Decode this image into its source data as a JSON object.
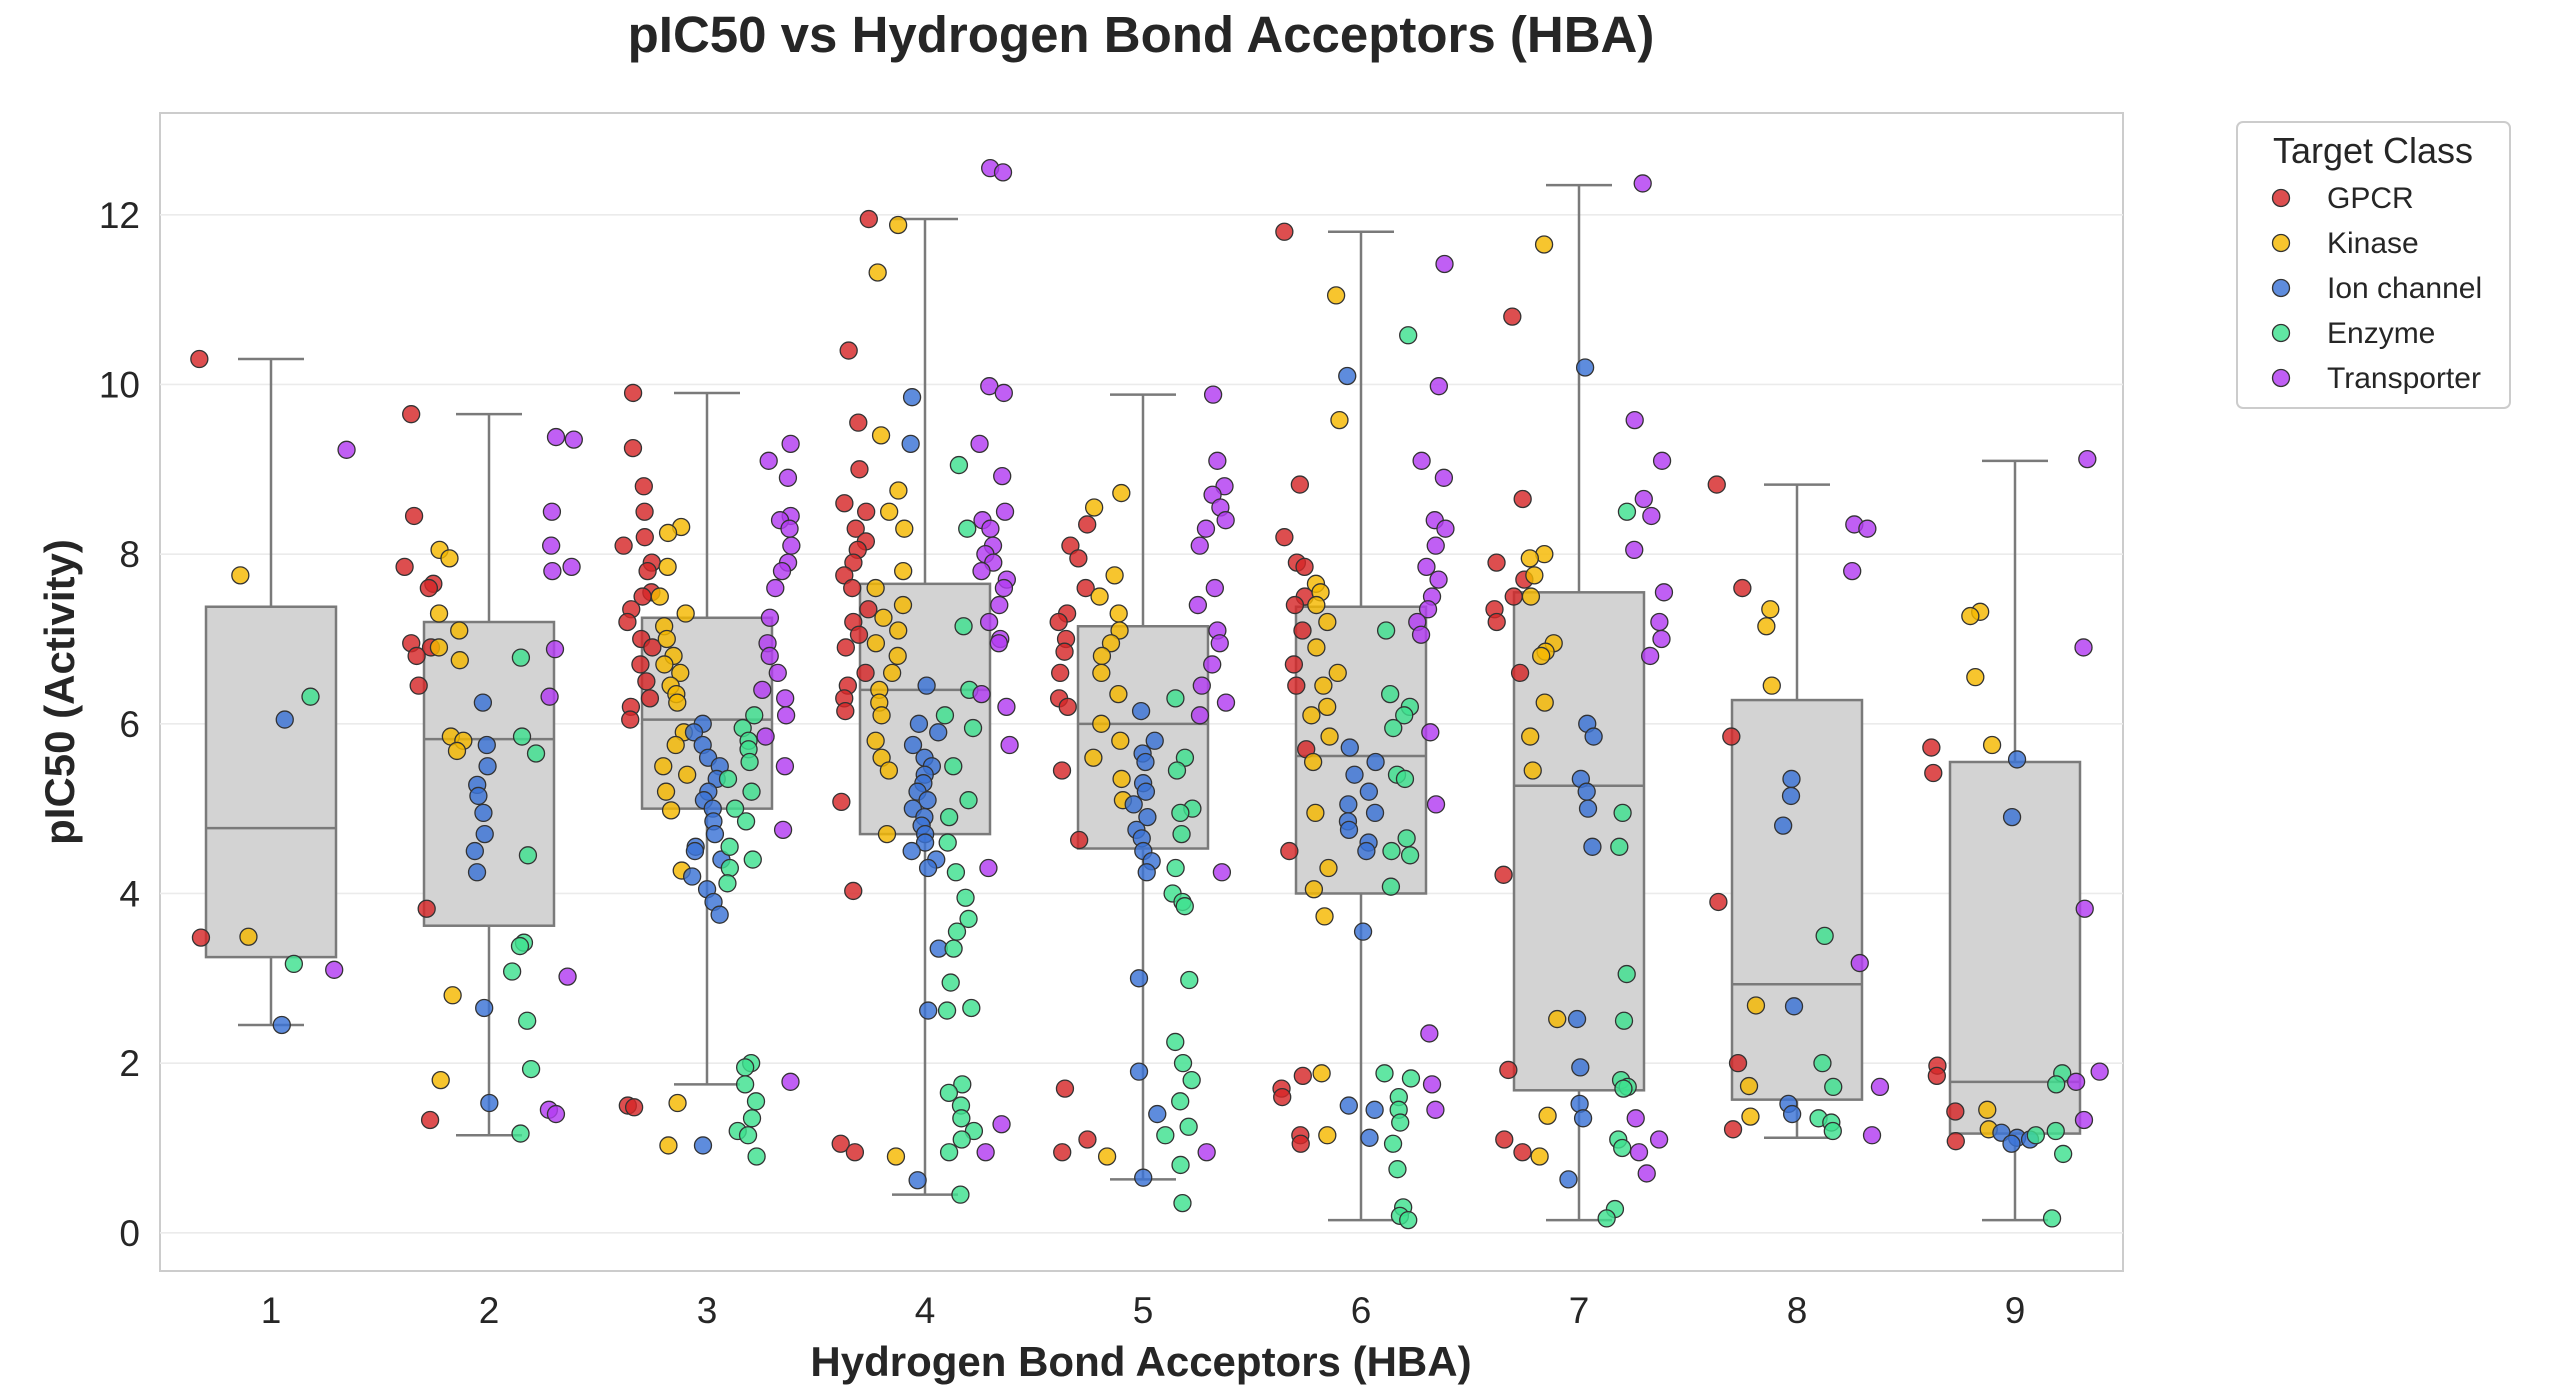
{
  "chart_data": {
    "type": "box-strip",
    "title": "pIC50 vs Hydrogen Bond Acceptors (HBA)",
    "xlabel": "Hydrogen Bond Acceptors (HBA)",
    "ylabel": "pIC50 (Activity)",
    "categories": [
      "1",
      "2",
      "3",
      "4",
      "5",
      "6",
      "7",
      "8",
      "9"
    ],
    "yticks": [
      "0",
      "2",
      "4",
      "6",
      "8",
      "10",
      "12"
    ],
    "ylim": [
      -0.45,
      13.2
    ],
    "grid": "horizontal",
    "legend": {
      "title": "Target Class",
      "placement": "outside-top-right",
      "entries": [
        "GPCR",
        "Kinase",
        "Ion channel",
        "Enzyme",
        "Transporter"
      ]
    },
    "colors": {
      "GPCR": "#d62728",
      "Kinase": "#f5b800",
      "Ion channel": "#3a73d6",
      "Enzyme": "#3ee08f",
      "Transporter": "#b23cf2",
      "box_fill": "#d3d3d3",
      "box_line": "#7a7a7a",
      "grid": "#ebebeb"
    },
    "boxes": [
      {
        "hba": "1",
        "whisker_low": 2.45,
        "q1": 3.25,
        "median": 4.77,
        "q3": 7.38,
        "whisker_high": 10.3
      },
      {
        "hba": "2",
        "whisker_low": 1.15,
        "q1": 3.62,
        "median": 5.82,
        "q3": 7.2,
        "whisker_high": 9.65
      },
      {
        "hba": "3",
        "whisker_low": 1.75,
        "q1": 5.0,
        "median": 6.05,
        "q3": 7.25,
        "whisker_high": 9.9
      },
      {
        "hba": "4",
        "whisker_low": 0.45,
        "q1": 4.7,
        "median": 6.4,
        "q3": 7.65,
        "whisker_high": 11.95
      },
      {
        "hba": "5",
        "whisker_low": 0.63,
        "q1": 4.53,
        "median": 6.0,
        "q3": 7.15,
        "whisker_high": 9.88
      },
      {
        "hba": "6",
        "whisker_low": 0.15,
        "q1": 4.0,
        "median": 5.62,
        "q3": 7.38,
        "whisker_high": 11.8
      },
      {
        "hba": "7",
        "whisker_low": 0.15,
        "q1": 1.68,
        "median": 5.27,
        "q3": 7.55,
        "whisker_high": 12.35
      },
      {
        "hba": "8",
        "whisker_low": 1.12,
        "q1": 1.57,
        "median": 2.93,
        "q3": 6.28,
        "whisker_high": 8.82
      },
      {
        "hba": "9",
        "whisker_low": 0.15,
        "q1": 1.17,
        "median": 1.78,
        "q3": 5.55,
        "whisker_high": 9.1
      }
    ],
    "series": [
      {
        "name": "GPCR",
        "points": [
          {
            "hba": 1,
            "values": [
              10.3,
              3.48
            ]
          },
          {
            "hba": 2,
            "values": [
              9.65,
              8.45,
              7.85,
              7.65,
              7.6,
              6.95,
              6.9,
              6.8,
              6.45,
              3.82,
              1.33
            ]
          },
          {
            "hba": 3,
            "values": [
              9.9,
              9.25,
              8.8,
              8.5,
              8.2,
              8.1,
              7.9,
              7.8,
              7.55,
              7.5,
              7.35,
              7.2,
              7.0,
              6.9,
              6.7,
              6.5,
              6.3,
              6.2,
              6.05,
              1.5,
              1.48
            ]
          },
          {
            "hba": 4,
            "values": [
              11.95,
              10.4,
              9.55,
              9.0,
              8.6,
              8.5,
              8.3,
              8.15,
              8.05,
              7.9,
              7.75,
              7.6,
              7.35,
              7.2,
              7.05,
              6.9,
              6.6,
              6.45,
              6.3,
              6.15,
              5.08,
              4.03,
              1.05,
              0.95
            ]
          },
          {
            "hba": 5,
            "values": [
              8.35,
              8.1,
              7.95,
              7.6,
              7.3,
              7.2,
              7.0,
              6.85,
              6.6,
              6.3,
              6.2,
              5.45,
              4.63,
              1.7,
              1.1,
              0.95
            ]
          },
          {
            "hba": 6,
            "values": [
              11.8,
              8.82,
              8.2,
              7.9,
              7.85,
              7.5,
              7.4,
              7.1,
              6.7,
              6.45,
              5.7,
              4.5,
              1.85,
              1.7,
              1.6,
              1.15,
              1.05
            ]
          },
          {
            "hba": 7,
            "values": [
              10.8,
              8.65,
              7.9,
              7.7,
              7.5,
              7.35,
              7.2,
              6.6,
              4.22,
              1.92,
              1.1,
              0.95
            ]
          },
          {
            "hba": 8,
            "values": [
              8.82,
              7.6,
              5.85,
              3.9,
              2.0,
              1.22
            ]
          },
          {
            "hba": 9,
            "values": [
              5.72,
              5.42,
              1.97,
              1.85,
              1.43,
              1.08
            ]
          }
        ]
      },
      {
        "name": "Kinase",
        "points": [
          {
            "hba": 1,
            "values": [
              7.75,
              3.49
            ]
          },
          {
            "hba": 2,
            "values": [
              8.05,
              7.95,
              7.3,
              7.1,
              6.9,
              6.75,
              5.85,
              5.8,
              5.68,
              2.8,
              1.8
            ]
          },
          {
            "hba": 3,
            "values": [
              8.32,
              8.25,
              7.85,
              7.5,
              7.3,
              7.15,
              7.0,
              6.8,
              6.7,
              6.6,
              6.45,
              6.35,
              6.25,
              5.9,
              5.75,
              5.5,
              5.4,
              5.2,
              4.98,
              4.27,
              1.53,
              1.03
            ]
          },
          {
            "hba": 4,
            "values": [
              11.88,
              11.32,
              9.4,
              8.75,
              8.5,
              8.3,
              7.8,
              7.6,
              7.4,
              7.25,
              7.1,
              6.95,
              6.8,
              6.6,
              6.4,
              6.25,
              6.1,
              5.8,
              5.6,
              5.45,
              4.7,
              0.9
            ]
          },
          {
            "hba": 5,
            "values": [
              8.72,
              8.55,
              7.75,
              7.5,
              7.3,
              7.1,
              6.95,
              6.8,
              6.6,
              6.35,
              6.0,
              5.8,
              5.6,
              5.35,
              5.1,
              0.9
            ]
          },
          {
            "hba": 6,
            "values": [
              11.05,
              9.58,
              7.65,
              7.55,
              7.4,
              7.2,
              6.9,
              6.6,
              6.45,
              6.2,
              6.1,
              5.85,
              5.55,
              4.95,
              4.3,
              4.05,
              3.73,
              1.88,
              1.15
            ]
          },
          {
            "hba": 7,
            "values": [
              11.65,
              8.0,
              7.95,
              7.75,
              7.5,
              6.95,
              6.85,
              6.8,
              6.25,
              5.85,
              5.45,
              2.52,
              1.38,
              0.9
            ]
          },
          {
            "hba": 8,
            "values": [
              7.35,
              7.15,
              6.45,
              2.68,
              1.73,
              1.37
            ]
          },
          {
            "hba": 9,
            "values": [
              7.32,
              7.27,
              6.55,
              5.75,
              1.45,
              1.22
            ]
          }
        ]
      },
      {
        "name": "Ion channel",
        "points": [
          {
            "hba": 1,
            "values": [
              6.05,
              2.45
            ]
          },
          {
            "hba": 2,
            "values": [
              6.25,
              5.75,
              5.5,
              5.28,
              5.15,
              4.95,
              4.7,
              4.5,
              4.25,
              2.65,
              1.53
            ]
          },
          {
            "hba": 3,
            "values": [
              6.0,
              5.9,
              5.75,
              5.6,
              5.5,
              5.35,
              5.2,
              5.1,
              5.0,
              4.85,
              4.7,
              4.55,
              4.5,
              4.4,
              4.2,
              4.05,
              3.9,
              3.75,
              1.03
            ]
          },
          {
            "hba": 4,
            "values": [
              9.85,
              9.3,
              6.45,
              6.0,
              5.9,
              5.75,
              5.6,
              5.5,
              5.4,
              5.3,
              5.2,
              5.1,
              5.0,
              4.9,
              4.8,
              4.7,
              4.6,
              4.5,
              4.4,
              4.3,
              3.35,
              2.62,
              0.62
            ]
          },
          {
            "hba": 5,
            "values": [
              6.15,
              5.8,
              5.65,
              5.55,
              5.3,
              5.2,
              5.05,
              4.9,
              4.75,
              4.65,
              4.5,
              4.38,
              4.25,
              3.0,
              1.9,
              1.4,
              0.65
            ]
          },
          {
            "hba": 6,
            "values": [
              10.1,
              5.72,
              5.55,
              5.4,
              5.2,
              5.05,
              4.95,
              4.85,
              4.75,
              4.6,
              4.5,
              3.55,
              1.5,
              1.45,
              1.12
            ]
          },
          {
            "hba": 7,
            "values": [
              10.2,
              6.0,
              5.85,
              5.35,
              5.2,
              5.0,
              4.55,
              2.52,
              1.95,
              1.52,
              1.35,
              0.63
            ]
          },
          {
            "hba": 8,
            "values": [
              5.35,
              5.15,
              4.8,
              2.67,
              1.52,
              1.4
            ]
          },
          {
            "hba": 9,
            "values": [
              5.58,
              4.9,
              1.18,
              1.12,
              1.1,
              1.05
            ]
          }
        ]
      },
      {
        "name": "Enzyme",
        "points": [
          {
            "hba": 1,
            "values": [
              6.32,
              3.17
            ]
          },
          {
            "hba": 2,
            "values": [
              6.78,
              5.85,
              5.65,
              4.45,
              3.42,
              3.38,
              3.08,
              2.5,
              1.93,
              1.17
            ]
          },
          {
            "hba": 3,
            "values": [
              6.1,
              5.95,
              5.8,
              5.7,
              5.55,
              5.35,
              5.2,
              5.0,
              4.85,
              4.55,
              4.4,
              4.3,
              4.12,
              2.0,
              1.95,
              1.75,
              1.55,
              1.35,
              1.2,
              1.15,
              0.9
            ]
          },
          {
            "hba": 4,
            "values": [
              9.05,
              8.3,
              7.15,
              6.4,
              6.1,
              5.95,
              5.5,
              5.1,
              4.9,
              4.6,
              4.25,
              3.95,
              3.7,
              3.55,
              3.35,
              2.95,
              2.65,
              2.62,
              1.75,
              1.65,
              1.5,
              1.35,
              1.2,
              1.1,
              0.95,
              0.45
            ]
          },
          {
            "hba": 5,
            "values": [
              6.3,
              5.6,
              5.45,
              5.0,
              4.95,
              4.7,
              4.3,
              4.0,
              3.9,
              3.85,
              2.98,
              2.25,
              2.0,
              1.8,
              1.55,
              1.25,
              1.15,
              0.8,
              0.35
            ]
          },
          {
            "hba": 6,
            "values": [
              10.58,
              7.1,
              6.35,
              6.2,
              6.1,
              5.95,
              5.4,
              5.35,
              4.65,
              4.5,
              4.45,
              4.08,
              1.88,
              1.82,
              1.6,
              1.45,
              1.3,
              1.05,
              0.75,
              0.3,
              0.2,
              0.15
            ]
          },
          {
            "hba": 7,
            "values": [
              8.5,
              4.95,
              4.55,
              3.05,
              2.5,
              1.8,
              1.72,
              1.7,
              1.1,
              1.0,
              0.28,
              0.17
            ]
          },
          {
            "hba": 8,
            "values": [
              3.5,
              2.0,
              1.72,
              1.35,
              1.3,
              1.2
            ]
          },
          {
            "hba": 9,
            "values": [
              1.88,
              1.75,
              1.2,
              1.15,
              0.93,
              0.17
            ]
          }
        ]
      },
      {
        "name": "Transporter",
        "points": [
          {
            "hba": 1,
            "values": [
              9.23,
              3.1
            ]
          },
          {
            "hba": 2,
            "values": [
              9.38,
              9.35,
              8.5,
              8.1,
              7.85,
              7.8,
              6.88,
              6.32,
              3.02,
              1.45,
              1.4
            ]
          },
          {
            "hba": 3,
            "values": [
              9.3,
              9.1,
              8.9,
              8.45,
              8.4,
              8.3,
              8.1,
              7.9,
              7.8,
              7.6,
              7.25,
              6.95,
              6.8,
              6.6,
              6.4,
              6.3,
              6.1,
              5.85,
              5.5,
              4.75,
              1.78
            ]
          },
          {
            "hba": 4,
            "values": [
              12.55,
              12.5,
              9.98,
              9.9,
              9.3,
              8.92,
              8.5,
              8.4,
              8.3,
              8.1,
              8.0,
              7.9,
              7.8,
              7.7,
              7.6,
              7.4,
              7.2,
              7.0,
              6.95,
              6.35,
              6.2,
              5.75,
              4.3,
              1.28,
              0.95
            ]
          },
          {
            "hba": 5,
            "values": [
              9.88,
              9.1,
              8.8,
              8.7,
              8.55,
              8.4,
              8.3,
              8.1,
              7.6,
              7.4,
              7.1,
              6.95,
              6.7,
              6.45,
              6.25,
              6.1,
              4.25,
              0.95
            ]
          },
          {
            "hba": 6,
            "values": [
              11.42,
              9.98,
              9.1,
              8.9,
              8.4,
              8.3,
              8.1,
              7.85,
              7.7,
              7.5,
              7.35,
              7.2,
              7.05,
              5.9,
              5.05,
              2.35,
              1.75,
              1.45
            ]
          },
          {
            "hba": 7,
            "values": [
              12.37,
              9.58,
              9.1,
              8.65,
              8.45,
              8.05,
              7.55,
              7.2,
              7.0,
              6.8,
              1.35,
              1.1,
              0.95,
              0.7
            ]
          },
          {
            "hba": 8,
            "values": [
              8.35,
              8.3,
              7.8,
              3.18,
              1.72,
              1.15
            ]
          },
          {
            "hba": 9,
            "values": [
              9.12,
              6.9,
              3.82,
              1.9,
              1.78,
              1.33
            ]
          }
        ]
      }
    ]
  }
}
